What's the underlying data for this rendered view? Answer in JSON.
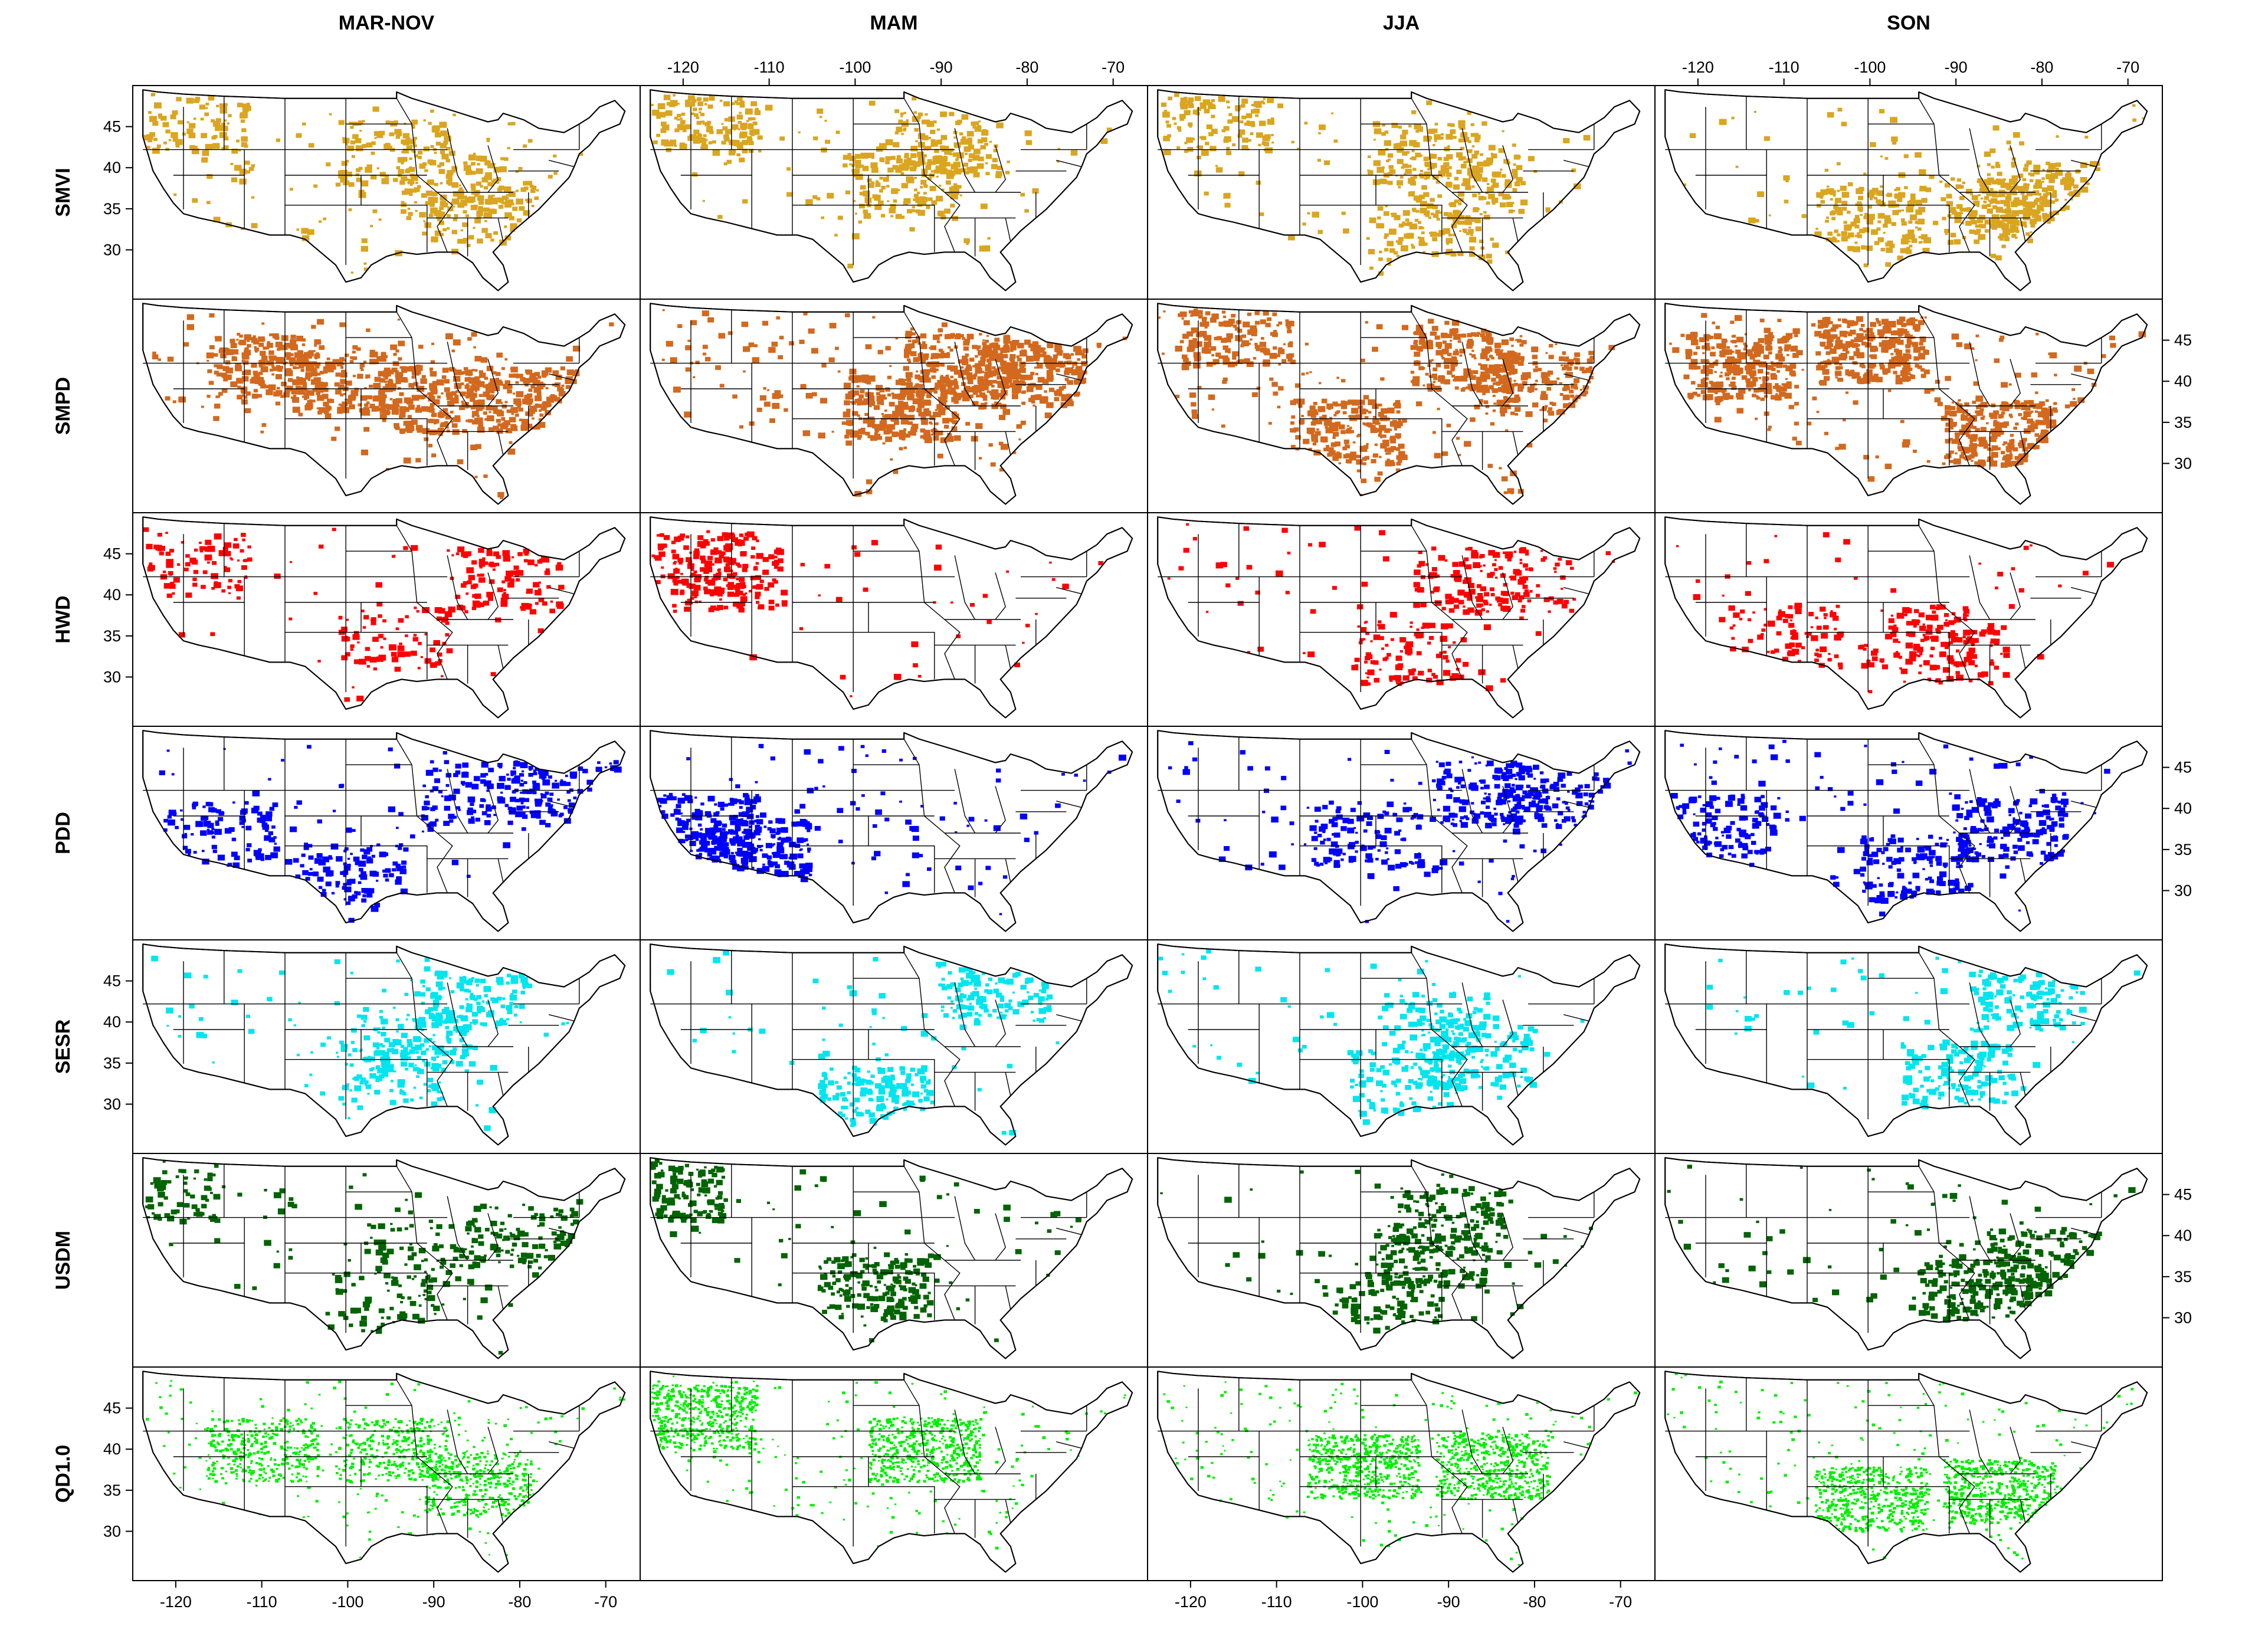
{
  "columns": [
    "MAR-NOV",
    "MAM",
    "JJA",
    "SON"
  ],
  "rows": [
    {
      "label": "SMVI",
      "color": "#daa520",
      "density": 0.28
    },
    {
      "label": "SMPD",
      "color": "#d2691e",
      "density": 0.45
    },
    {
      "label": "HWD",
      "color": "#ff0000",
      "density": 0.15
    },
    {
      "label": "PDD",
      "color": "#0000ff",
      "density": 0.25
    },
    {
      "label": "SESR",
      "color": "#00e5ee",
      "density": 0.18
    },
    {
      "label": "USDM",
      "color": "#006400",
      "density": 0.2
    },
    {
      "label": "QD1.0",
      "color": "#00ee00",
      "density": 0.6
    }
  ],
  "axes": {
    "lon_ticks": [
      "-120",
      "-110",
      "-100",
      "-90",
      "-80",
      "-70"
    ],
    "lat_ticks": [
      "45",
      "40",
      "35",
      "30"
    ],
    "lon_range": [
      -125,
      -66
    ],
    "lat_range": [
      24,
      50
    ]
  }
}
